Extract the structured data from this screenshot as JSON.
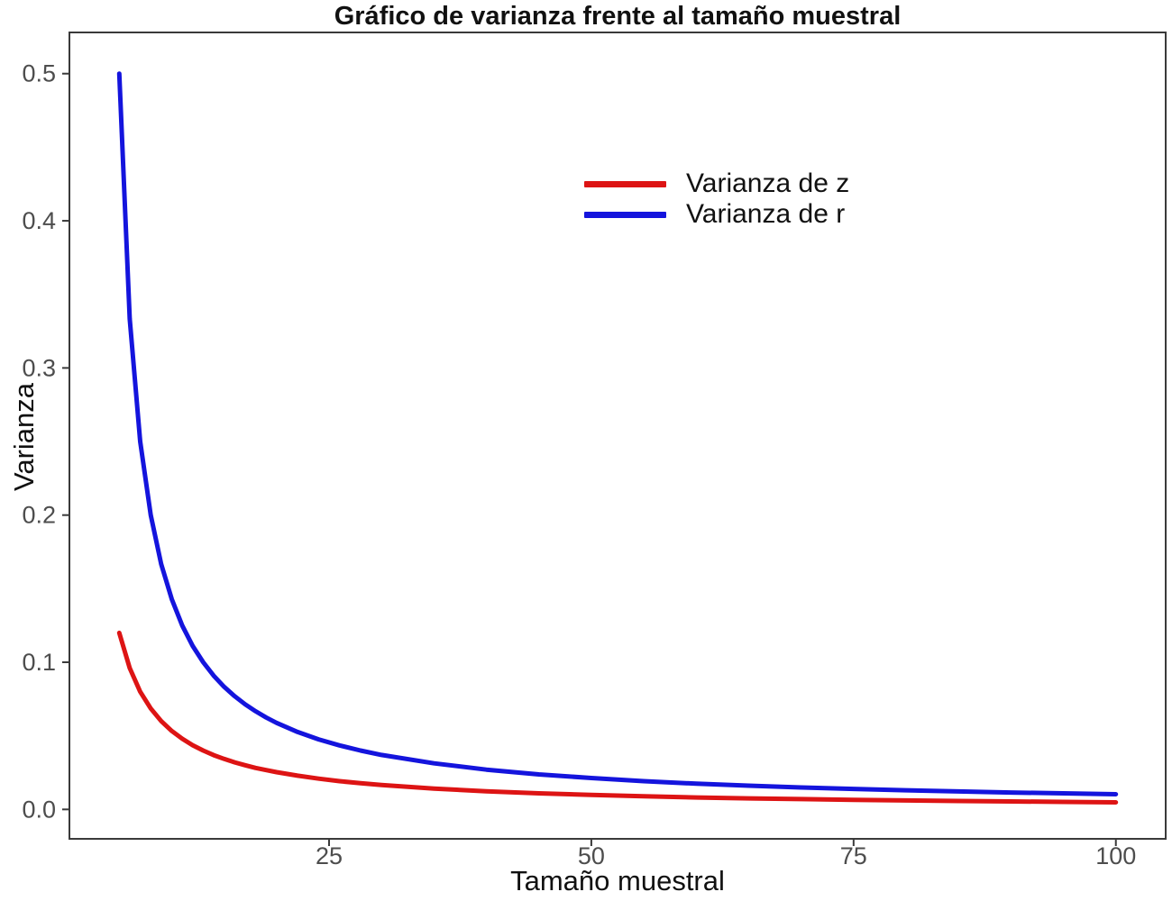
{
  "chart_data": {
    "type": "line",
    "title": "Gráfico de varianza frente al tamaño muestral",
    "xlabel": "Tamaño muestral",
    "ylabel": "Varianza",
    "grid": false,
    "background": "#ffffff",
    "panel_border_color": "#3a3a3a",
    "tick_label_color": "#4d4d4d",
    "legend_position": "inside-top-center",
    "x_ticks": [
      25,
      50,
      75,
      100
    ],
    "y_ticks": [
      0.0,
      0.1,
      0.2,
      0.3,
      0.4,
      0.5
    ],
    "xlim": [
      0.25,
      104.75
    ],
    "ylim": [
      -0.02,
      0.528
    ],
    "x": [
      5,
      6,
      7,
      8,
      9,
      10,
      11,
      12,
      13,
      14,
      15,
      16,
      17,
      18,
      19,
      20,
      22,
      24,
      26,
      28,
      30,
      35,
      40,
      45,
      50,
      55,
      60,
      65,
      70,
      75,
      80,
      85,
      90,
      95,
      100
    ],
    "series": [
      {
        "name": "Varianza de z",
        "color": "#dd1414",
        "values": [
          0.12,
          0.096,
          0.08,
          0.0686,
          0.06,
          0.0533,
          0.048,
          0.0436,
          0.04,
          0.0369,
          0.0343,
          0.032,
          0.03,
          0.0282,
          0.0267,
          0.0253,
          0.0229,
          0.0209,
          0.0192,
          0.0178,
          0.0166,
          0.0141,
          0.0123,
          0.0109,
          0.0098,
          0.0089,
          0.0081,
          0.0075,
          0.007,
          0.0065,
          0.0061,
          0.0057,
          0.0054,
          0.0051,
          0.0048
        ]
      },
      {
        "name": "Varianza de r",
        "color": "#1414dd",
        "values": [
          0.5,
          0.3333,
          0.25,
          0.2,
          0.1667,
          0.1429,
          0.125,
          0.1111,
          0.1,
          0.0909,
          0.0833,
          0.0769,
          0.0714,
          0.0667,
          0.0625,
          0.0588,
          0.0526,
          0.0476,
          0.0435,
          0.04,
          0.037,
          0.0313,
          0.027,
          0.0238,
          0.0213,
          0.0192,
          0.0175,
          0.0161,
          0.0149,
          0.0139,
          0.013,
          0.0122,
          0.0115,
          0.0109,
          0.0103
        ]
      }
    ]
  }
}
